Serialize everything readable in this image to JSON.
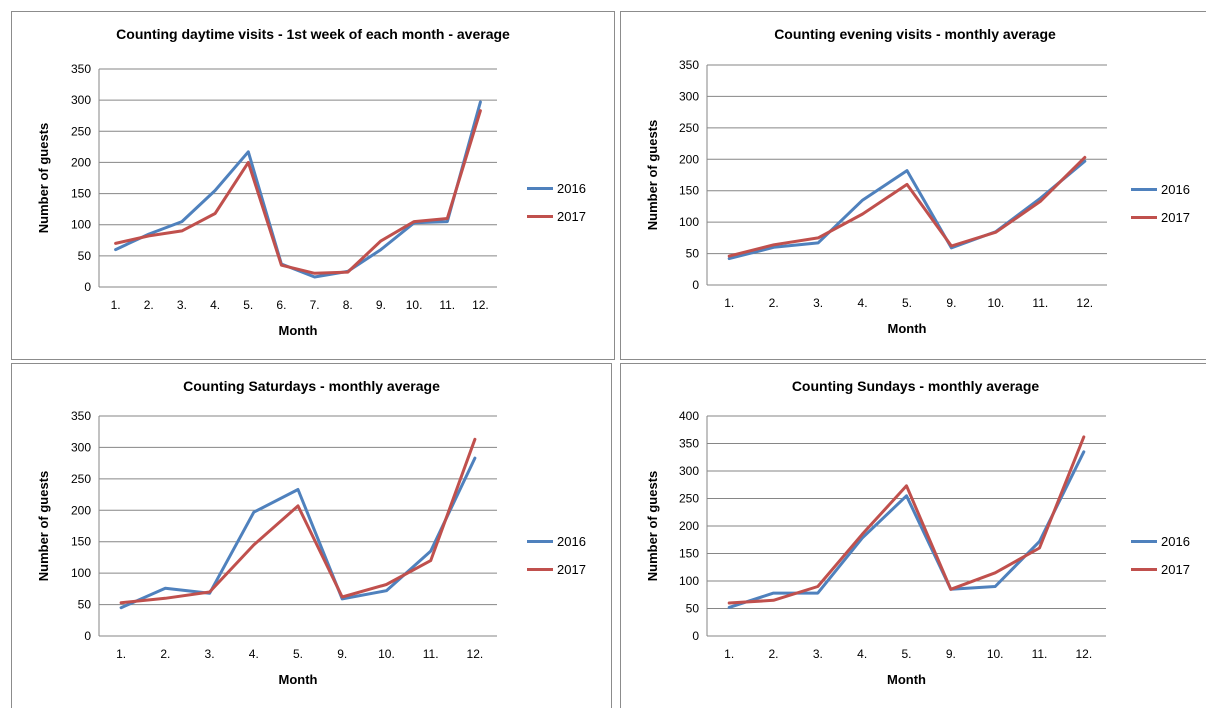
{
  "chart_data": [
    {
      "type": "line",
      "title": "Counting daytime visits - 1st week of each month - average",
      "xlabel": "Month",
      "ylabel": "Number of guests",
      "categories": [
        "1.",
        "2.",
        "3.",
        "4.",
        "5.",
        "6.",
        "7.",
        "8.",
        "9.",
        "10.",
        "11.",
        "12."
      ],
      "ylim": [
        0,
        350
      ],
      "yticks": [
        0,
        50,
        100,
        150,
        200,
        250,
        300,
        350
      ],
      "grid": true,
      "legend": "right",
      "series": [
        {
          "name": "2016",
          "color": "#4F81BD",
          "values": [
            60,
            85,
            105,
            155,
            217,
            37,
            16,
            25,
            60,
            103,
            105,
            297
          ]
        },
        {
          "name": "2017",
          "color": "#C0504D",
          "values": [
            70,
            82,
            90,
            118,
            200,
            35,
            22,
            24,
            74,
            105,
            110,
            283
          ]
        }
      ]
    },
    {
      "type": "line",
      "title": "Counting evening visits - monthly average",
      "xlabel": "Month",
      "ylabel": "Number of guests",
      "categories": [
        "1.",
        "2.",
        "3.",
        "4.",
        "5.",
        "9.",
        "10.",
        "11.",
        "12."
      ],
      "ylim": [
        0,
        350
      ],
      "yticks": [
        0,
        50,
        100,
        150,
        200,
        250,
        300,
        350
      ],
      "grid": true,
      "legend": "right",
      "series": [
        {
          "name": "2016",
          "color": "#4F81BD",
          "values": [
            42,
            60,
            67,
            135,
            182,
            59,
            85,
            138,
            197
          ]
        },
        {
          "name": "2017",
          "color": "#C0504D",
          "values": [
            46,
            64,
            75,
            113,
            160,
            62,
            84,
            133,
            203
          ]
        }
      ]
    },
    {
      "type": "line",
      "title": "Counting Saturdays - monthly average",
      "xlabel": "Month",
      "ylabel": "Number of guests",
      "categories": [
        "1.",
        "2.",
        "3.",
        "4.",
        "5.",
        "9.",
        "10.",
        "11.",
        "12."
      ],
      "ylim": [
        0,
        350
      ],
      "yticks": [
        0,
        50,
        100,
        150,
        200,
        250,
        300,
        350
      ],
      "grid": true,
      "legend": "right",
      "series": [
        {
          "name": "2016",
          "color": "#4F81BD",
          "values": [
            45,
            76,
            68,
            197,
            233,
            59,
            72,
            135,
            283
          ]
        },
        {
          "name": "2017",
          "color": "#C0504D",
          "values": [
            53,
            60,
            70,
            145,
            207,
            62,
            82,
            120,
            313
          ]
        }
      ]
    },
    {
      "type": "line",
      "title": "Counting Sundays - monthly average",
      "xlabel": "Month",
      "ylabel": "Number of guests",
      "categories": [
        "1.",
        "2.",
        "3.",
        "4.",
        "5.",
        "9.",
        "10.",
        "11.",
        "12."
      ],
      "ylim": [
        0,
        400
      ],
      "yticks": [
        0,
        50,
        100,
        150,
        200,
        250,
        300,
        350,
        400
      ],
      "grid": true,
      "legend": "right",
      "series": [
        {
          "name": "2016",
          "color": "#4F81BD",
          "values": [
            52,
            78,
            78,
            178,
            255,
            85,
            90,
            172,
            335
          ]
        },
        {
          "name": "2017",
          "color": "#C0504D",
          "values": [
            60,
            65,
            90,
            185,
            273,
            85,
            115,
            160,
            362
          ]
        }
      ]
    }
  ]
}
